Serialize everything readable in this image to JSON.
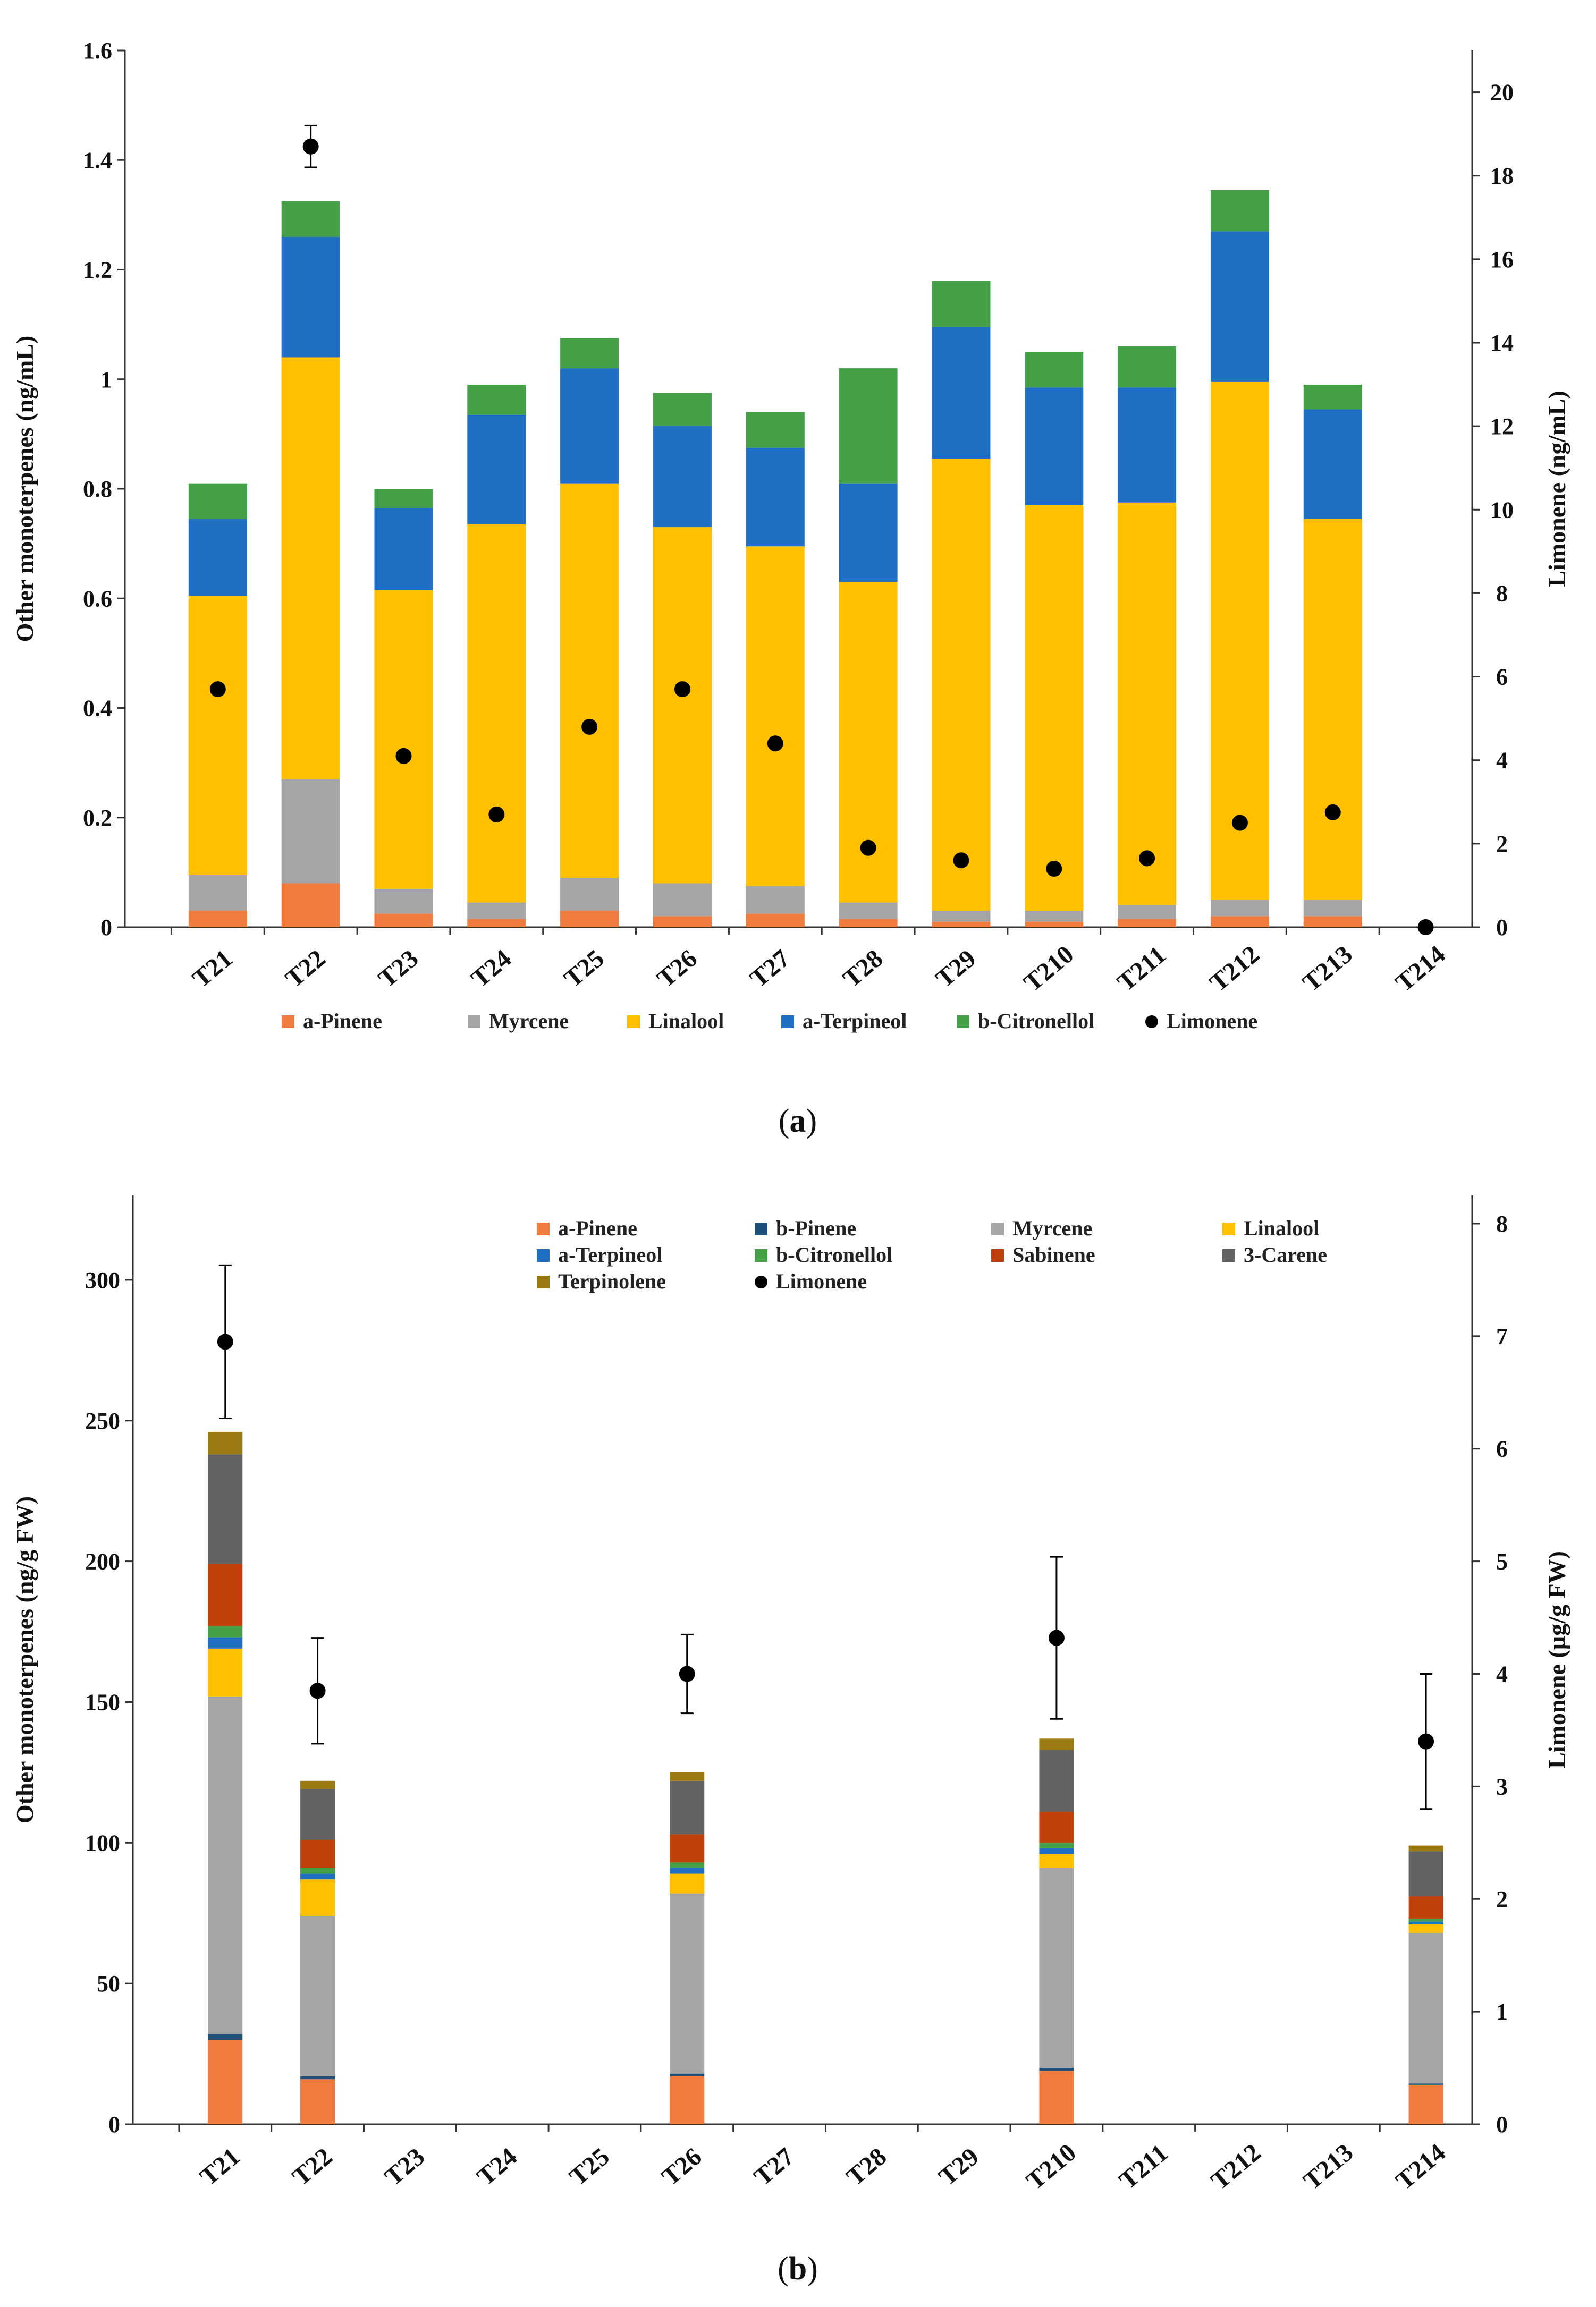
{
  "colors": {
    "a-Pinene": "#f07b3f",
    "b-Pinene": "#1f4e79",
    "Myrcene": "#a5a5a5",
    "Linalool": "#ffc000",
    "a-Terpineol": "#1f6fc5",
    "b-Citronellol": "#43a047",
    "Sabinene": "#c0410c",
    "3-Carene": "#636363",
    "Terpinolene": "#9c7a12",
    "Limonene": "#000000"
  },
  "chart_data": [
    {
      "id": "a",
      "panel_label": "a",
      "type": "bar",
      "stacked": true,
      "categories": [
        "T21",
        "T22",
        "T23",
        "T24",
        "T25",
        "T26",
        "T27",
        "T28",
        "T29",
        "T210",
        "T211",
        "T212",
        "T213",
        "T214"
      ],
      "ylabel_left": "Other monoterpenes (ng/mL)",
      "ylabel_right": "Limonene (ng/mL)",
      "ylim_left": [
        0,
        1.6
      ],
      "ylim_right": [
        0,
        21
      ],
      "yticks_left": [
        "0",
        "0.2",
        "0.4",
        "0.6",
        "0.8",
        "1",
        "1.2",
        "1.4",
        "1.6"
      ],
      "yticks_right": [
        "0",
        "2",
        "4",
        "6",
        "8",
        "10",
        "12",
        "14",
        "16",
        "18",
        "20"
      ],
      "legend": [
        "a-Pinene",
        "Myrcene",
        "Linalool",
        "a-Terpineol",
        "b-Citronellol",
        "Limonene"
      ],
      "series": [
        {
          "name": "a-Pinene",
          "values": [
            0.03,
            0.08,
            0.025,
            0.015,
            0.03,
            0.02,
            0.025,
            0.015,
            0.01,
            0.01,
            0.015,
            0.02,
            0.02,
            0
          ]
        },
        {
          "name": "Myrcene",
          "values": [
            0.065,
            0.19,
            0.045,
            0.03,
            0.06,
            0.06,
            0.05,
            0.03,
            0.02,
            0.02,
            0.025,
            0.03,
            0.03,
            0
          ]
        },
        {
          "name": "Linalool",
          "values": [
            0.51,
            0.77,
            0.545,
            0.69,
            0.72,
            0.65,
            0.62,
            0.585,
            0.825,
            0.74,
            0.735,
            0.945,
            0.695,
            0
          ]
        },
        {
          "name": "a-Terpineol",
          "values": [
            0.14,
            0.22,
            0.15,
            0.2,
            0.21,
            0.185,
            0.18,
            0.18,
            0.24,
            0.215,
            0.21,
            0.275,
            0.2,
            0
          ]
        },
        {
          "name": "b-Citronellol",
          "values": [
            0.065,
            0.065,
            0.035,
            0.055,
            0.055,
            0.06,
            0.065,
            0.21,
            0.085,
            0.065,
            0.075,
            0.075,
            0.045,
            0
          ]
        }
      ],
      "points": {
        "name": "Limonene",
        "axis": "right",
        "values": [
          5.7,
          18.7,
          4.1,
          2.7,
          4.8,
          5.7,
          4.4,
          1.9,
          1.6,
          1.4,
          1.65,
          2.5,
          2.75,
          0
        ],
        "errors": [
          0,
          0.5,
          0,
          0,
          0,
          0,
          0,
          0,
          0,
          0,
          0,
          0,
          0,
          0
        ]
      }
    },
    {
      "id": "b",
      "panel_label": "b",
      "type": "bar",
      "stacked": true,
      "categories": [
        "T21",
        "T22",
        "T23",
        "T24",
        "T25",
        "T26",
        "T27",
        "T28",
        "T29",
        "T210",
        "T211",
        "T212",
        "T213",
        "T214"
      ],
      "ylabel_left": "Other monoterpenes (ng/g FW)",
      "ylabel_right": "Limonene (µg/g FW)",
      "ylim_left": [
        0,
        330
      ],
      "ylim_right": [
        0,
        8.25
      ],
      "yticks_left": [
        "0",
        "50",
        "100",
        "150",
        "200",
        "250",
        "300"
      ],
      "yticks_right": [
        "0",
        "1",
        "2",
        "3",
        "4",
        "5",
        "6",
        "7",
        "8"
      ],
      "legend": [
        "a-Pinene",
        "b-Pinene",
        "Myrcene",
        "Linalool",
        "a-Terpineol",
        "b-Citronellol",
        "Sabinene",
        "3-Carene",
        "Terpinolene",
        "Limonene"
      ],
      "series": [
        {
          "name": "a-Pinene",
          "values": [
            30,
            16,
            0,
            0,
            0,
            17,
            0,
            0,
            0,
            19,
            0,
            0,
            0,
            14
          ]
        },
        {
          "name": "b-Pinene",
          "values": [
            2,
            1,
            0,
            0,
            0,
            1,
            0,
            0,
            0,
            1,
            0,
            0,
            0,
            0.5
          ]
        },
        {
          "name": "Myrcene",
          "values": [
            120,
            57,
            0,
            0,
            0,
            64,
            0,
            0,
            0,
            71,
            0,
            0,
            0,
            53.5
          ]
        },
        {
          "name": "Linalool",
          "values": [
            17,
            13,
            0,
            0,
            0,
            7,
            0,
            0,
            0,
            5,
            0,
            0,
            0,
            3
          ]
        },
        {
          "name": "a-Terpineol",
          "values": [
            4,
            2,
            0,
            0,
            0,
            2,
            0,
            0,
            0,
            2,
            0,
            0,
            0,
            1
          ]
        },
        {
          "name": "b-Citronellol",
          "values": [
            4,
            2,
            0,
            0,
            0,
            2,
            0,
            0,
            0,
            2,
            0,
            0,
            0,
            1
          ]
        },
        {
          "name": "Sabinene",
          "values": [
            22,
            10,
            0,
            0,
            0,
            10,
            0,
            0,
            0,
            11,
            0,
            0,
            0,
            8
          ]
        },
        {
          "name": "3-Carene",
          "values": [
            39,
            18,
            0,
            0,
            0,
            19,
            0,
            0,
            0,
            22,
            0,
            0,
            0,
            16
          ]
        },
        {
          "name": "Terpinolene",
          "values": [
            8,
            3,
            0,
            0,
            0,
            3,
            0,
            0,
            0,
            4,
            0,
            0,
            0,
            2
          ]
        }
      ],
      "points": {
        "name": "Limonene",
        "axis": "right",
        "values": [
          6.95,
          3.85,
          null,
          null,
          null,
          4.0,
          null,
          null,
          null,
          4.32,
          null,
          null,
          null,
          3.4
        ],
        "errors": [
          0.68,
          0.47,
          null,
          null,
          null,
          0.35,
          null,
          null,
          null,
          0.72,
          null,
          null,
          null,
          0.6
        ]
      }
    }
  ]
}
